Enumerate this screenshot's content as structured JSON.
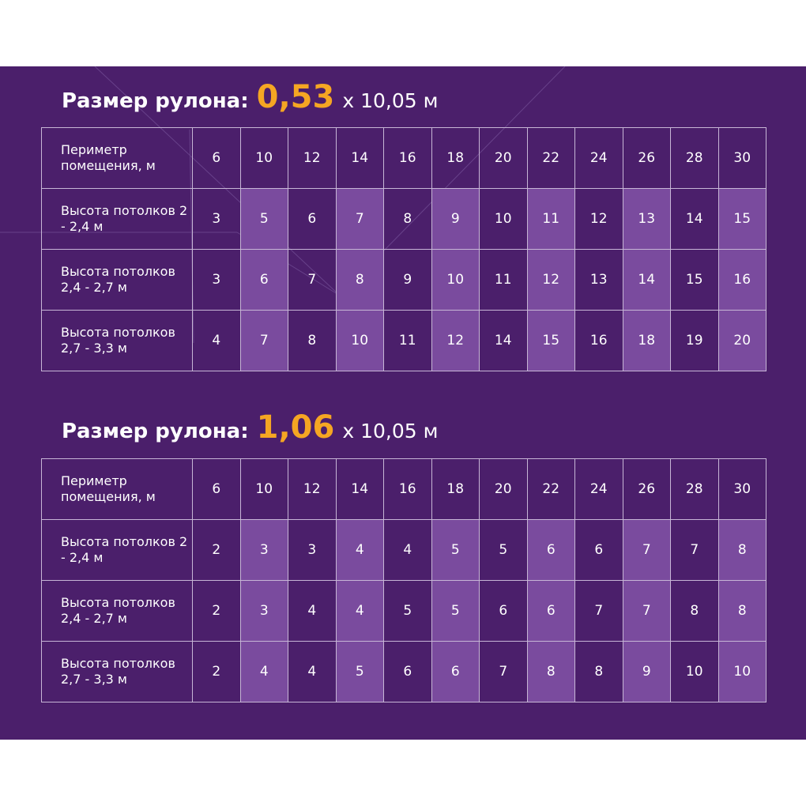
{
  "sections": [
    {
      "title_prefix": "Размер рулона:",
      "title_accent": "0,53",
      "title_suffix": "x 10,05 м",
      "header_label": "Периметр помещения, м",
      "perimeters": [
        "6",
        "10",
        "12",
        "14",
        "16",
        "18",
        "20",
        "22",
        "24",
        "26",
        "28",
        "30"
      ],
      "rows": [
        {
          "label": "Высота потолков 2 - 2,4 м",
          "values": [
            "3",
            "5",
            "6",
            "7",
            "8",
            "9",
            "10",
            "11",
            "12",
            "13",
            "14",
            "15"
          ]
        },
        {
          "label": "Высота потолков 2,4 - 2,7 м",
          "values": [
            "3",
            "6",
            "7",
            "8",
            "9",
            "10",
            "11",
            "12",
            "13",
            "14",
            "15",
            "16"
          ]
        },
        {
          "label": "Высота потолков 2,7 - 3,3 м",
          "values": [
            "4",
            "7",
            "8",
            "10",
            "11",
            "12",
            "14",
            "15",
            "16",
            "18",
            "19",
            "20"
          ]
        }
      ]
    },
    {
      "title_prefix": "Размер рулона:",
      "title_accent": "1,06",
      "title_suffix": "x 10,05 м",
      "header_label": "Периметр помещения, м",
      "perimeters": [
        "6",
        "10",
        "12",
        "14",
        "16",
        "18",
        "20",
        "22",
        "24",
        "26",
        "28",
        "30"
      ],
      "rows": [
        {
          "label": "Высота потолков 2 - 2,4 м",
          "values": [
            "2",
            "3",
            "3",
            "4",
            "4",
            "5",
            "5",
            "6",
            "6",
            "7",
            "7",
            "8"
          ]
        },
        {
          "label": "Высота потолков 2,4 - 2,7 м",
          "values": [
            "2",
            "3",
            "4",
            "4",
            "5",
            "5",
            "6",
            "6",
            "7",
            "7",
            "8",
            "8"
          ]
        },
        {
          "label": "Высота потолков 2,7 - 3,3 м",
          "values": [
            "2",
            "4",
            "4",
            "5",
            "6",
            "6",
            "7",
            "8",
            "8",
            "9",
            "10",
            "10"
          ]
        }
      ]
    }
  ],
  "highlighted_columns": [
    1,
    3,
    5,
    7,
    9,
    11
  ],
  "colors": {
    "background": "#4b1f6b",
    "highlight": "#7a4b9e",
    "accent": "#f5a623",
    "border": "#c7b6d6"
  }
}
